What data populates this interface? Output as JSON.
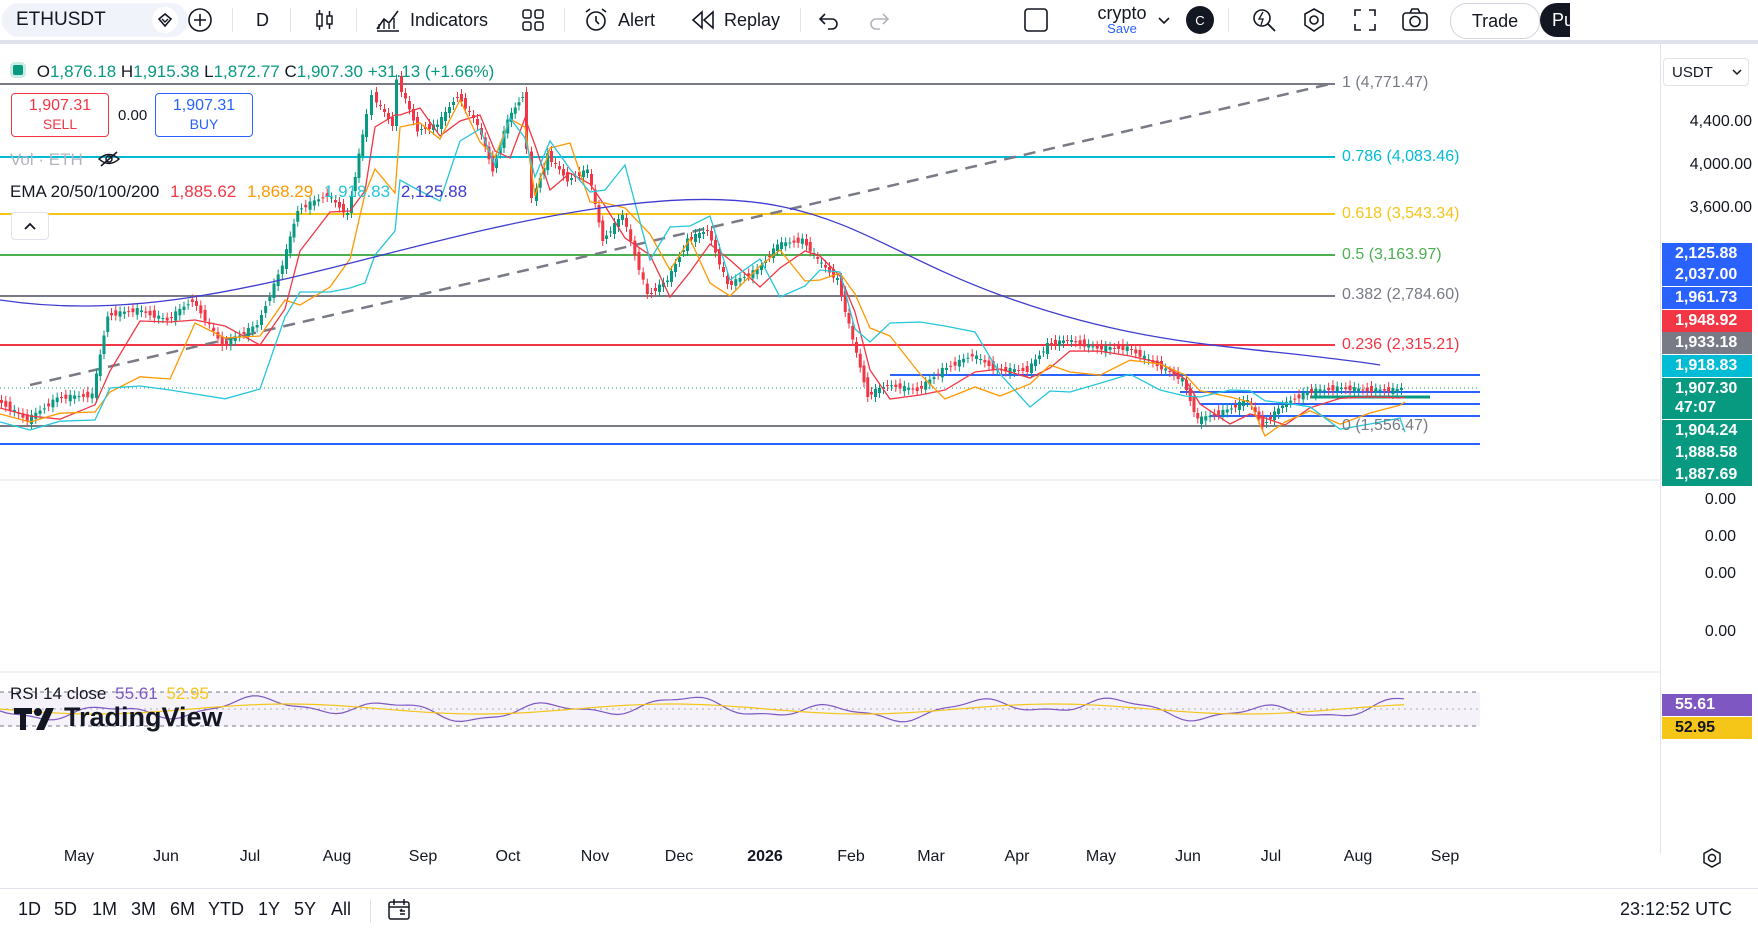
{
  "toolbar": {
    "symbol": "ETHUSDT",
    "interval": "D",
    "indicators_label": "Indicators",
    "alert_label": "Alert",
    "replay_label": "Replay",
    "layout_name": "crypto",
    "layout_save": "Save",
    "avatar_letter": "C",
    "trade_label": "Trade",
    "publish_label": "Pu"
  },
  "legend": {
    "ohlc": {
      "o_label": "O",
      "o": "1,876.18",
      "h_label": "H",
      "h": "1,915.38",
      "l_label": "L",
      "l": "1,872.77",
      "c_label": "C",
      "c": "1,907.30",
      "chg": "+31.13 (+1.66%)"
    },
    "sell_price": "1,907.31",
    "sell_label": "SELL",
    "spread": "0.00",
    "buy_price": "1,907.31",
    "buy_label": "BUY",
    "vol_label": "Vol · ETH",
    "ema_label": "EMA 20/50/100/200",
    "ema_values": [
      "1,885.62",
      "1,868.29",
      "1,918.83",
      "2,125.88"
    ],
    "ema_colors": [
      "#f23645",
      "#ff9800",
      "#26c6da",
      "#3f3ccf"
    ]
  },
  "fib_levels": [
    {
      "label": "1 (4,771.47)",
      "color": "#787b86"
    },
    {
      "label": "0.786 (4,083.46)",
      "color": "#00bcd4"
    },
    {
      "label": "0.618 (3,543.34)",
      "color": "#f5c518"
    },
    {
      "label": "0.5 (3,163.97)",
      "color": "#4caf50"
    },
    {
      "label": "0.382 (2,784.60)",
      "color": "#787b86"
    },
    {
      "label": "0.236 (2,315.21)",
      "color": "#f23645"
    },
    {
      "label": "0 (1,556.47)",
      "color": "#787b86"
    }
  ],
  "price_axis": {
    "currency": "USDT",
    "ticks": [
      "4,400.00",
      "4,000.00",
      "3,600.00"
    ],
    "indicator_ticks": [
      "0.00",
      "0.00",
      "0.00",
      "0.00"
    ],
    "tags": [
      {
        "value": "2,125.88",
        "color": "#2962ff"
      },
      {
        "value": "2,037.00",
        "color": "#2962ff"
      },
      {
        "value": "1,961.73",
        "color": "#2962ff"
      },
      {
        "value": "1,948.92",
        "color": "#f23645"
      },
      {
        "value": "1,933.18",
        "color": "#787b86"
      },
      {
        "value": "1,918.83",
        "color": "#00bcd4"
      },
      {
        "value": "1,907.30",
        "color": "#089981"
      },
      {
        "value": "47:07",
        "color": "#089981"
      },
      {
        "value": "1,904.24",
        "color": "#089981"
      },
      {
        "value": "1,888.58",
        "color": "#089981"
      },
      {
        "value": "1,887.69",
        "color": "#089981"
      }
    ]
  },
  "rsi": {
    "label": "RSI 14 close",
    "value": "55.61",
    "ma": "52.95",
    "value_color": "#7e57c2",
    "ma_color": "#f5c518"
  },
  "watermark": "TradingView",
  "time_axis": [
    "May",
    "Jun",
    "Jul",
    "Aug",
    "Sep",
    "Oct",
    "Nov",
    "Dec",
    "2026",
    "Feb",
    "Mar",
    "Apr",
    "May",
    "Jun",
    "Jul",
    "Aug",
    "Sep"
  ],
  "bottom": {
    "ranges": [
      "1D",
      "5D",
      "1M",
      "3M",
      "6M",
      "YTD",
      "1Y",
      "5Y",
      "All"
    ],
    "clock": "23:12:52 UTC"
  },
  "colors": {
    "up": "#089981",
    "down": "#f23645"
  }
}
